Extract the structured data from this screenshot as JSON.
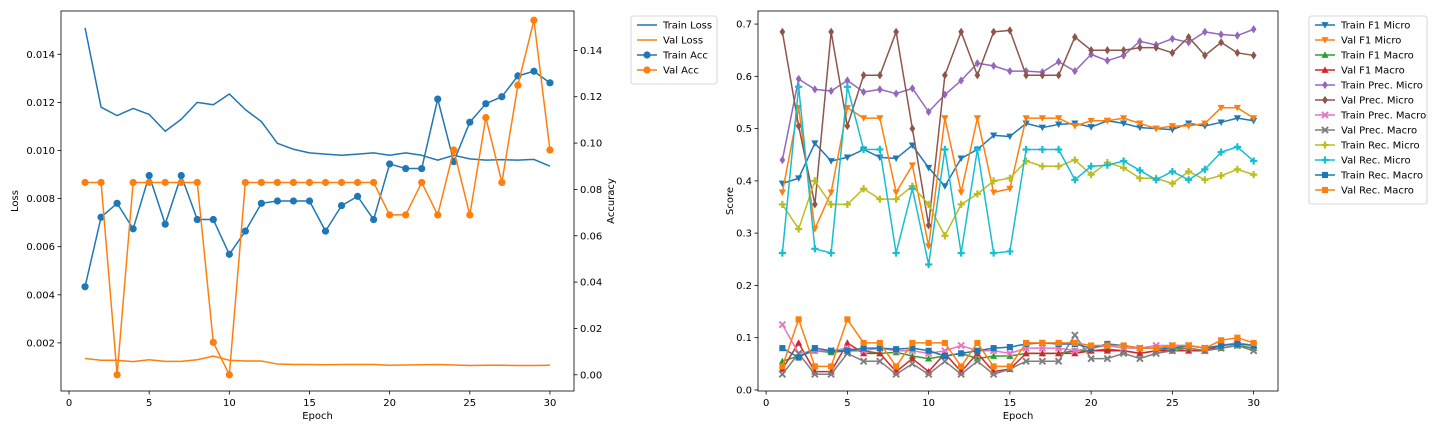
{
  "chart_data": [
    {
      "type": "line",
      "xlabel": "Epoch",
      "ylabel": "Loss",
      "y2label": "Accuracy",
      "xlim": [
        -0.5,
        31.5
      ],
      "ylim": [
        0.0,
        0.0158
      ],
      "y2lim": [
        -0.007,
        0.157
      ],
      "xticks": [
        0,
        5,
        10,
        15,
        20,
        25,
        30
      ],
      "yticks": [
        0.002,
        0.004,
        0.006,
        0.008,
        0.01,
        0.012,
        0.014
      ],
      "ytick_labels": [
        "0.002",
        "0.004",
        "0.006",
        "0.008",
        "0.010",
        "0.012",
        "0.014"
      ],
      "y2ticks": [
        0.0,
        0.02,
        0.04,
        0.06,
        0.08,
        0.1,
        0.12,
        0.14
      ],
      "y2tick_labels": [
        "0.00",
        "0.02",
        "0.04",
        "0.06",
        "0.08",
        "0.10",
        "0.12",
        "0.14"
      ],
      "grid": false,
      "legend": "outside-upper-right",
      "x": [
        1,
        2,
        3,
        4,
        5,
        6,
        7,
        8,
        9,
        10,
        11,
        12,
        13,
        14,
        15,
        16,
        17,
        18,
        19,
        20,
        21,
        22,
        23,
        24,
        25,
        26,
        27,
        28,
        29,
        30
      ],
      "series": [
        {
          "name": "Train Loss",
          "axis": "left",
          "color": "#1f77b4",
          "marker": "none",
          "values": [
            0.0151,
            0.0118,
            0.01145,
            0.01175,
            0.0115,
            0.0108,
            0.0113,
            0.012,
            0.0119,
            0.01235,
            0.0117,
            0.0112,
            0.0103,
            0.01005,
            0.0099,
            0.00985,
            0.0098,
            0.00985,
            0.0099,
            0.0098,
            0.0099,
            0.0098,
            0.0096,
            0.0098,
            0.00965,
            0.0096,
            0.00962,
            0.0096,
            0.00963,
            0.00935
          ]
        },
        {
          "name": "Val Loss",
          "axis": "left",
          "color": "#ff7f0e",
          "marker": "none",
          "values": [
            0.00135,
            0.00128,
            0.00128,
            0.00122,
            0.0013,
            0.00123,
            0.00123,
            0.0013,
            0.00145,
            0.00128,
            0.00125,
            0.00125,
            0.00112,
            0.0011,
            0.0011,
            0.00109,
            0.0011,
            0.0011,
            0.0011,
            0.00107,
            0.00108,
            0.00109,
            0.0011,
            0.00108,
            0.00106,
            0.00107,
            0.00107,
            0.00106,
            0.00106,
            0.00107
          ]
        },
        {
          "name": "Train Acc",
          "axis": "right",
          "color": "#1f77b4",
          "marker": "circle",
          "values": [
            0.038,
            0.068,
            0.074,
            0.063,
            0.086,
            0.065,
            0.086,
            0.067,
            0.067,
            0.052,
            0.062,
            0.074,
            0.075,
            0.075,
            0.075,
            0.062,
            0.073,
            0.077,
            0.067,
            0.091,
            0.089,
            0.089,
            0.119,
            0.092,
            0.109,
            0.117,
            0.12,
            0.129,
            0.131,
            0.126
          ]
        },
        {
          "name": "Val Acc",
          "axis": "right",
          "color": "#ff7f0e",
          "marker": "circle",
          "values": [
            0.083,
            0.083,
            0.0,
            0.083,
            0.083,
            0.083,
            0.083,
            0.083,
            0.014,
            0.0,
            0.083,
            0.083,
            0.083,
            0.083,
            0.083,
            0.083,
            0.083,
            0.083,
            0.083,
            0.069,
            0.069,
            0.083,
            0.069,
            0.097,
            0.069,
            0.111,
            0.083,
            0.125,
            0.153,
            0.097
          ]
        }
      ]
    },
    {
      "type": "line",
      "xlabel": "Epoch",
      "ylabel": "Score",
      "xlim": [
        -0.5,
        31.5
      ],
      "ylim": [
        -0.002,
        0.725
      ],
      "xticks": [
        0,
        5,
        10,
        15,
        20,
        25,
        30
      ],
      "yticks": [
        0.0,
        0.1,
        0.2,
        0.3,
        0.4,
        0.5,
        0.6,
        0.7
      ],
      "ytick_labels": [
        "0.0",
        "0.1",
        "0.2",
        "0.3",
        "0.4",
        "0.5",
        "0.6",
        "0.7"
      ],
      "grid": false,
      "legend": "outside-upper-right",
      "x": [
        1,
        2,
        3,
        4,
        5,
        6,
        7,
        8,
        9,
        10,
        11,
        12,
        13,
        14,
        15,
        16,
        17,
        18,
        19,
        20,
        21,
        22,
        23,
        24,
        25,
        26,
        27,
        28,
        29,
        30
      ],
      "series": [
        {
          "name": "Train F1 Micro",
          "color": "#1f77b4",
          "marker": "tri-down",
          "values": [
            0.395,
            0.405,
            0.472,
            0.438,
            0.445,
            0.46,
            0.445,
            0.443,
            0.468,
            0.425,
            0.39,
            0.443,
            0.46,
            0.487,
            0.485,
            0.51,
            0.502,
            0.508,
            0.51,
            0.503,
            0.515,
            0.51,
            0.502,
            0.5,
            0.498,
            0.51,
            0.505,
            0.512,
            0.52,
            0.515
          ]
        },
        {
          "name": "Val F1 Micro",
          "color": "#ff7f0e",
          "marker": "tri-down",
          "values": [
            0.378,
            0.54,
            0.308,
            0.378,
            0.54,
            0.52,
            0.52,
            0.378,
            0.43,
            0.275,
            0.52,
            0.378,
            0.52,
            0.378,
            0.385,
            0.52,
            0.52,
            0.52,
            0.505,
            0.515,
            0.515,
            0.52,
            0.51,
            0.5,
            0.505,
            0.505,
            0.51,
            0.54,
            0.54,
            0.52
          ]
        },
        {
          "name": "Train F1 Macro",
          "color": "#2ca02c",
          "marker": "tri-up",
          "values": [
            0.055,
            0.065,
            0.075,
            0.072,
            0.075,
            0.075,
            0.07,
            0.072,
            0.065,
            0.06,
            0.065,
            0.07,
            0.06,
            0.065,
            0.065,
            0.07,
            0.07,
            0.07,
            0.075,
            0.075,
            0.078,
            0.075,
            0.07,
            0.075,
            0.08,
            0.08,
            0.075,
            0.08,
            0.085,
            0.08
          ]
        },
        {
          "name": "Val F1 Macro",
          "color": "#d62728",
          "marker": "tri-up",
          "values": [
            0.04,
            0.09,
            0.035,
            0.035,
            0.09,
            0.07,
            0.07,
            0.035,
            0.06,
            0.035,
            0.07,
            0.035,
            0.07,
            0.035,
            0.04,
            0.07,
            0.07,
            0.07,
            0.07,
            0.075,
            0.075,
            0.075,
            0.07,
            0.075,
            0.075,
            0.075,
            0.075,
            0.085,
            0.09,
            0.085
          ]
        },
        {
          "name": "Train Prec. Micro",
          "color": "#9467bd",
          "marker": "diamond",
          "values": [
            0.44,
            0.595,
            0.575,
            0.572,
            0.592,
            0.57,
            0.575,
            0.567,
            0.577,
            0.532,
            0.565,
            0.592,
            0.625,
            0.62,
            0.61,
            0.61,
            0.608,
            0.628,
            0.61,
            0.642,
            0.63,
            0.64,
            0.667,
            0.66,
            0.672,
            0.665,
            0.685,
            0.68,
            0.678,
            0.69
          ]
        },
        {
          "name": "Val Prec. Micro",
          "color": "#8c564b",
          "marker": "diamond",
          "values": [
            0.685,
            0.505,
            0.355,
            0.685,
            0.505,
            0.602,
            0.602,
            0.685,
            0.5,
            0.315,
            0.602,
            0.685,
            0.602,
            0.685,
            0.688,
            0.602,
            0.602,
            0.602,
            0.675,
            0.65,
            0.65,
            0.65,
            0.655,
            0.655,
            0.645,
            0.675,
            0.64,
            0.665,
            0.645,
            0.64
          ]
        },
        {
          "name": "Train Prec. Macro",
          "color": "#e377c2",
          "marker": "x",
          "values": [
            0.125,
            0.07,
            0.075,
            0.075,
            0.08,
            0.075,
            0.08,
            0.075,
            0.075,
            0.07,
            0.075,
            0.085,
            0.075,
            0.075,
            0.07,
            0.08,
            0.08,
            0.08,
            0.075,
            0.08,
            0.085,
            0.08,
            0.08,
            0.085,
            0.085,
            0.085,
            0.08,
            0.085,
            0.09,
            0.085
          ]
        },
        {
          "name": "Val Prec. Macro",
          "color": "#7f7f7f",
          "marker": "x",
          "values": [
            0.03,
            0.07,
            0.03,
            0.03,
            0.07,
            0.055,
            0.055,
            0.03,
            0.05,
            0.03,
            0.055,
            0.03,
            0.055,
            0.03,
            0.04,
            0.055,
            0.055,
            0.055,
            0.105,
            0.06,
            0.06,
            0.07,
            0.06,
            0.07,
            0.075,
            0.08,
            0.075,
            0.08,
            0.085,
            0.075
          ]
        },
        {
          "name": "Train Rec. Micro",
          "color": "#bcbd22",
          "marker": "plus",
          "values": [
            0.355,
            0.308,
            0.4,
            0.355,
            0.355,
            0.385,
            0.365,
            0.365,
            0.39,
            0.355,
            0.295,
            0.355,
            0.375,
            0.4,
            0.405,
            0.438,
            0.428,
            0.428,
            0.44,
            0.412,
            0.435,
            0.425,
            0.405,
            0.405,
            0.395,
            0.418,
            0.402,
            0.41,
            0.422,
            0.412
          ]
        },
        {
          "name": "Val Rec. Micro",
          "color": "#17becf",
          "marker": "plus",
          "values": [
            0.262,
            0.58,
            0.27,
            0.262,
            0.58,
            0.46,
            0.46,
            0.262,
            0.385,
            0.24,
            0.46,
            0.262,
            0.46,
            0.262,
            0.265,
            0.46,
            0.46,
            0.46,
            0.402,
            0.428,
            0.43,
            0.438,
            0.42,
            0.402,
            0.418,
            0.402,
            0.422,
            0.455,
            0.465,
            0.438
          ]
        },
        {
          "name": "Train Rec. Macro",
          "color": "#1f77b4",
          "marker": "square",
          "values": [
            0.08,
            0.062,
            0.08,
            0.075,
            0.075,
            0.08,
            0.08,
            0.078,
            0.08,
            0.075,
            0.065,
            0.07,
            0.075,
            0.08,
            0.082,
            0.088,
            0.09,
            0.088,
            0.088,
            0.08,
            0.088,
            0.085,
            0.08,
            0.08,
            0.08,
            0.085,
            0.08,
            0.085,
            0.088,
            0.085
          ]
        },
        {
          "name": "Val Rec. Macro",
          "color": "#ff7f0e",
          "marker": "square",
          "values": [
            0.045,
            0.135,
            0.045,
            0.045,
            0.135,
            0.09,
            0.09,
            0.045,
            0.09,
            0.09,
            0.09,
            0.045,
            0.09,
            0.045,
            0.045,
            0.09,
            0.09,
            0.09,
            0.09,
            0.085,
            0.085,
            0.085,
            0.08,
            0.08,
            0.085,
            0.085,
            0.08,
            0.095,
            0.1,
            0.09
          ]
        }
      ]
    }
  ]
}
